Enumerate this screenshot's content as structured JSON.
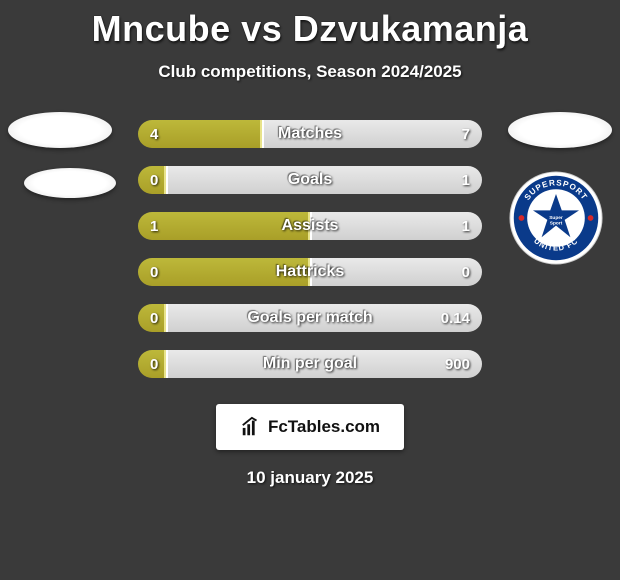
{
  "title": "Mncube vs Dzvukamanja",
  "subtitle": "Club competitions, Season 2024/2025",
  "date": "10 january 2025",
  "footer_label": "FcTables.com",
  "colors": {
    "background": "#3a3a3a",
    "left_bar": "#a99f28",
    "left_bar_highlight": "#bdb83a",
    "right_bar": "#d0d0d0",
    "right_bar_highlight": "#e9e9e9",
    "text": "#ffffff"
  },
  "club_logo": {
    "name": "Supersport United FC",
    "ring_color": "#0a3a8a",
    "inner_bg": "#ffffff",
    "star_color": "#0a3a8a",
    "text_color": "#ffffff",
    "accent_red": "#d62828"
  },
  "stats": [
    {
      "label": "Matches",
      "left_val": "4",
      "right_val": "7",
      "left_pct": 36,
      "right_pct": 64
    },
    {
      "label": "Goals",
      "left_val": "0",
      "right_val": "1",
      "left_pct": 8,
      "right_pct": 92
    },
    {
      "label": "Assists",
      "left_val": "1",
      "right_val": "1",
      "left_pct": 50,
      "right_pct": 50
    },
    {
      "label": "Hattricks",
      "left_val": "0",
      "right_val": "0",
      "left_pct": 50,
      "right_pct": 50
    },
    {
      "label": "Goals per match",
      "left_val": "0",
      "right_val": "0.14",
      "left_pct": 8,
      "right_pct": 92
    },
    {
      "label": "Min per goal",
      "left_val": "0",
      "right_val": "900",
      "left_pct": 8,
      "right_pct": 92
    }
  ]
}
